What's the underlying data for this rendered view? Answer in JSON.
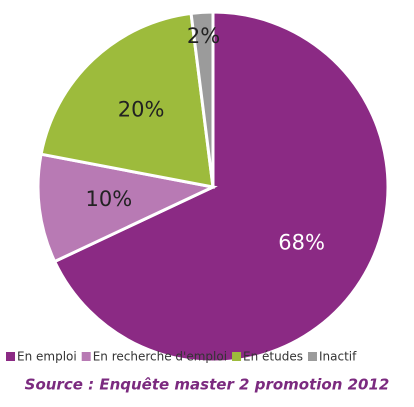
{
  "chart_data": {
    "type": "pie",
    "categories": [
      "En emploi",
      "En recherche d'emploi",
      "En études",
      "Inactif"
    ],
    "values": [
      68,
      10,
      20,
      2
    ],
    "value_labels": [
      "68%",
      "10%",
      "20%",
      "2%"
    ],
    "colors": [
      "#8b2a84",
      "#b87ab4",
      "#9dbb3c",
      "#9b9b9b"
    ],
    "source": "Source : Enquête master 2 promotion 2012"
  }
}
